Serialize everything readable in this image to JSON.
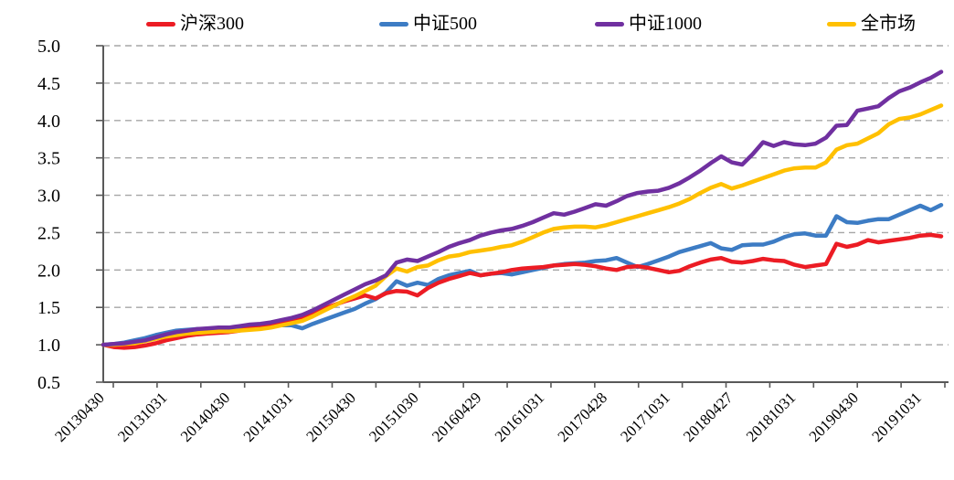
{
  "chart_data": {
    "type": "line",
    "title": "",
    "background": "#ffffff",
    "grid": "horizontal-dashed",
    "grid_color": "#a6a6a6",
    "axis_color": "#595959",
    "legend_position": "top",
    "x_axis": {
      "start": "20130430",
      "end": "20191231",
      "frequency": "monthly",
      "points_per_series": 81,
      "label_every_n_months": 6,
      "tick_labels": [
        "20130430",
        "20131031",
        "20140430",
        "20141031",
        "20150430",
        "20151030",
        "20160429",
        "20161031",
        "20170428",
        "20171031",
        "20180427",
        "20181031",
        "20190430",
        "20191031"
      ]
    },
    "y_axis": {
      "min": 0.5,
      "max": 5.0,
      "step": 0.5,
      "tick_labels": [
        "0.5",
        "1.0",
        "1.5",
        "2.0",
        "2.5",
        "3.0",
        "3.5",
        "4.0",
        "4.5",
        "5.0"
      ]
    },
    "series": [
      {
        "id": "hs300",
        "name": "沪深300",
        "color": "#ec1c24",
        "values": [
          1.0,
          0.97,
          0.96,
          0.97,
          0.99,
          1.02,
          1.06,
          1.09,
          1.12,
          1.14,
          1.15,
          1.16,
          1.17,
          1.19,
          1.22,
          1.25,
          1.28,
          1.3,
          1.32,
          1.35,
          1.42,
          1.48,
          1.53,
          1.58,
          1.62,
          1.66,
          1.62,
          1.69,
          1.72,
          1.71,
          1.66,
          1.76,
          1.83,
          1.88,
          1.92,
          1.96,
          1.93,
          1.95,
          1.97,
          2.0,
          2.02,
          2.03,
          2.04,
          2.06,
          2.07,
          2.08,
          2.07,
          2.05,
          2.02,
          2.0,
          2.04,
          2.05,
          2.03,
          2.0,
          1.97,
          1.99,
          2.05,
          2.1,
          2.14,
          2.16,
          2.11,
          2.1,
          2.12,
          2.15,
          2.13,
          2.12,
          2.07,
          2.04,
          2.06,
          2.08,
          2.35,
          2.31,
          2.34,
          2.4,
          2.37,
          2.39,
          2.41,
          2.43,
          2.46,
          2.47,
          2.45
        ]
      },
      {
        "id": "csi500",
        "name": "中证500",
        "color": "#3d7cc4",
        "values": [
          1.0,
          1.01,
          1.03,
          1.06,
          1.09,
          1.13,
          1.16,
          1.19,
          1.2,
          1.21,
          1.21,
          1.22,
          1.22,
          1.23,
          1.25,
          1.26,
          1.27,
          1.26,
          1.26,
          1.22,
          1.28,
          1.33,
          1.38,
          1.43,
          1.48,
          1.55,
          1.61,
          1.7,
          1.85,
          1.79,
          1.83,
          1.8,
          1.88,
          1.93,
          1.96,
          1.99,
          1.93,
          1.95,
          1.96,
          1.94,
          1.97,
          2.0,
          2.03,
          2.06,
          2.08,
          2.09,
          2.1,
          2.12,
          2.13,
          2.16,
          2.1,
          2.04,
          2.08,
          2.13,
          2.18,
          2.24,
          2.28,
          2.32,
          2.36,
          2.29,
          2.27,
          2.33,
          2.34,
          2.34,
          2.38,
          2.44,
          2.48,
          2.49,
          2.46,
          2.46,
          2.72,
          2.64,
          2.63,
          2.66,
          2.68,
          2.68,
          2.74,
          2.8,
          2.86,
          2.8,
          2.87
        ]
      },
      {
        "id": "csi1000",
        "name": "中证1000",
        "color": "#7030a0",
        "values": [
          1.0,
          1.01,
          1.02,
          1.04,
          1.06,
          1.1,
          1.14,
          1.17,
          1.19,
          1.21,
          1.22,
          1.23,
          1.23,
          1.25,
          1.27,
          1.28,
          1.3,
          1.33,
          1.36,
          1.4,
          1.46,
          1.53,
          1.6,
          1.67,
          1.74,
          1.81,
          1.86,
          1.93,
          2.1,
          2.14,
          2.12,
          2.18,
          2.24,
          2.31,
          2.36,
          2.4,
          2.46,
          2.5,
          2.53,
          2.55,
          2.59,
          2.64,
          2.7,
          2.76,
          2.74,
          2.78,
          2.83,
          2.88,
          2.86,
          2.92,
          2.99,
          3.03,
          3.05,
          3.06,
          3.1,
          3.16,
          3.24,
          3.33,
          3.43,
          3.52,
          3.44,
          3.41,
          3.55,
          3.71,
          3.66,
          3.71,
          3.68,
          3.67,
          3.69,
          3.77,
          3.93,
          3.94,
          4.13,
          4.16,
          4.19,
          4.3,
          4.39,
          4.44,
          4.51,
          4.57,
          4.65
        ]
      },
      {
        "id": "whole-market",
        "name": "全市场",
        "color": "#ffc000",
        "values": [
          1.0,
          1.0,
          1.01,
          1.02,
          1.05,
          1.08,
          1.11,
          1.13,
          1.15,
          1.16,
          1.17,
          1.18,
          1.18,
          1.19,
          1.2,
          1.21,
          1.23,
          1.26,
          1.29,
          1.32,
          1.38,
          1.45,
          1.52,
          1.59,
          1.65,
          1.72,
          1.79,
          1.92,
          2.02,
          1.98,
          2.04,
          2.06,
          2.13,
          2.18,
          2.2,
          2.24,
          2.26,
          2.28,
          2.31,
          2.33,
          2.38,
          2.44,
          2.5,
          2.55,
          2.57,
          2.58,
          2.58,
          2.57,
          2.6,
          2.64,
          2.68,
          2.72,
          2.76,
          2.8,
          2.84,
          2.89,
          2.95,
          3.03,
          3.1,
          3.15,
          3.09,
          3.13,
          3.18,
          3.23,
          3.28,
          3.33,
          3.36,
          3.37,
          3.37,
          3.44,
          3.61,
          3.67,
          3.69,
          3.76,
          3.83,
          3.95,
          4.02,
          4.04,
          4.08,
          4.14,
          4.2
        ]
      }
    ]
  }
}
